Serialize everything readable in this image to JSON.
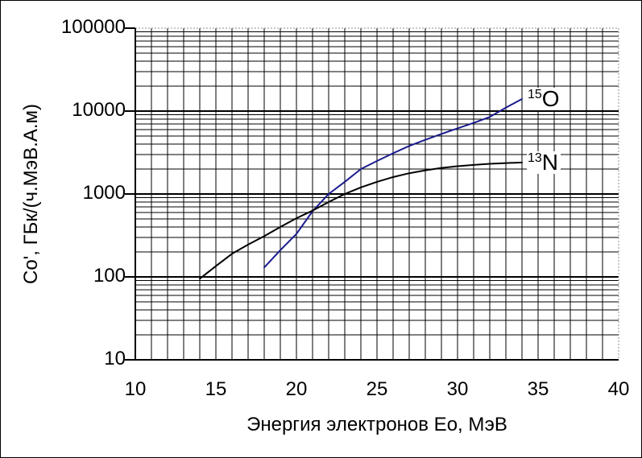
{
  "chart_data": {
    "type": "line",
    "title": "",
    "xlabel": "Энергия электронов Eo, МэВ",
    "ylabel": "Co', ГБк/(ч.МэВ.А.м)",
    "xlim": [
      10,
      40
    ],
    "x_major_ticks": [
      10,
      15,
      20,
      25,
      30,
      35,
      40
    ],
    "x_minor_step": 1,
    "y_scale": "log",
    "ylim": [
      10,
      100000
    ],
    "y_major_ticks": [
      10,
      100,
      1000,
      10000,
      100000
    ],
    "grid": "major and minor gridlines on both axes, solid black; dotted gray top and right plot border",
    "legend_position": "labels at right end of each curve",
    "colors": {
      "background": "#ffffff",
      "grid": "#000000",
      "axis": "#000000",
      "plot_border_dotted": "#909090"
    },
    "series": [
      {
        "name": "15O",
        "label_sup": "15",
        "label_base": "O",
        "color": "#1b1b8e",
        "points": [
          [
            18,
            130
          ],
          [
            19,
            210
          ],
          [
            20,
            330
          ],
          [
            21,
            620
          ],
          [
            22,
            1000
          ],
          [
            23,
            1400
          ],
          [
            24,
            2000
          ],
          [
            25,
            2500
          ],
          [
            26,
            3100
          ],
          [
            27,
            3800
          ],
          [
            28,
            4500
          ],
          [
            29,
            5300
          ],
          [
            30,
            6200
          ],
          [
            31,
            7200
          ],
          [
            32,
            8500
          ],
          [
            33,
            11000
          ],
          [
            34,
            14000
          ]
        ]
      },
      {
        "name": "13N",
        "label_sup": "13",
        "label_base": "N",
        "color": "#000000",
        "points": [
          [
            14,
            95
          ],
          [
            15,
            135
          ],
          [
            16,
            190
          ],
          [
            17,
            245
          ],
          [
            18,
            310
          ],
          [
            19,
            400
          ],
          [
            20,
            510
          ],
          [
            21,
            630
          ],
          [
            22,
            800
          ],
          [
            23,
            1000
          ],
          [
            24,
            1200
          ],
          [
            25,
            1400
          ],
          [
            26,
            1600
          ],
          [
            27,
            1780
          ],
          [
            28,
            1930
          ],
          [
            29,
            2060
          ],
          [
            30,
            2160
          ],
          [
            31,
            2240
          ],
          [
            32,
            2310
          ],
          [
            33,
            2360
          ],
          [
            34,
            2400
          ]
        ]
      }
    ]
  }
}
